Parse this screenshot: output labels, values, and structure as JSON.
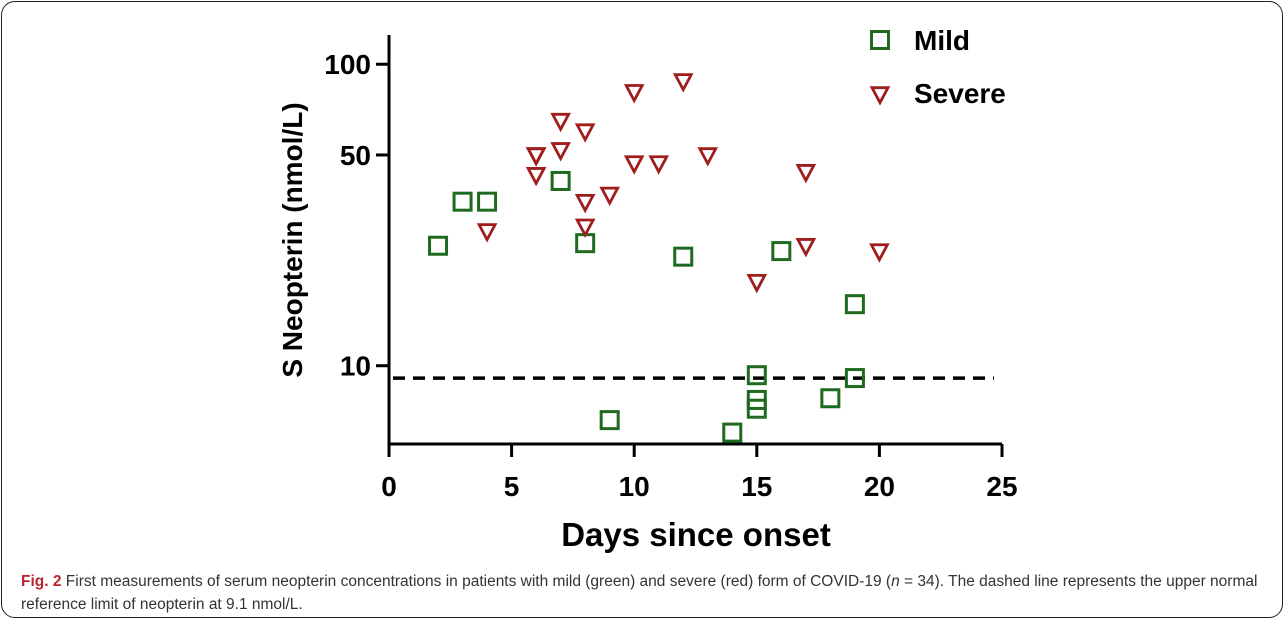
{
  "chart_data": {
    "type": "scatter",
    "xlabel": "Days since onset",
    "ylabel": "S Neopterin (nmol/L)",
    "xlim": [
      0,
      25
    ],
    "ylim": [
      5.5,
      125
    ],
    "yscale": "log",
    "xticks": [
      0,
      5,
      10,
      15,
      20,
      25
    ],
    "yticks": [
      10,
      50,
      100
    ],
    "legend_position": "top-right",
    "reference_line": {
      "y": 9.1,
      "style": "dashed"
    },
    "series": [
      {
        "name": "Mild",
        "marker": "square-open",
        "color": "#1e6a1e",
        "points": [
          {
            "x": 2,
            "y": 25
          },
          {
            "x": 3,
            "y": 35
          },
          {
            "x": 4,
            "y": 35
          },
          {
            "x": 7,
            "y": 41
          },
          {
            "x": 8,
            "y": 25.5
          },
          {
            "x": 9,
            "y": 6.6
          },
          {
            "x": 12,
            "y": 23
          },
          {
            "x": 14,
            "y": 6
          },
          {
            "x": 15,
            "y": 9.3
          },
          {
            "x": 15,
            "y": 7.7
          },
          {
            "x": 15,
            "y": 7.2
          },
          {
            "x": 16,
            "y": 24
          },
          {
            "x": 18,
            "y": 7.8
          },
          {
            "x": 19,
            "y": 9.1
          },
          {
            "x": 19,
            "y": 16
          }
        ]
      },
      {
        "name": "Severe",
        "marker": "triangle-down-open",
        "color": "#a01d1d",
        "points": [
          {
            "x": 4,
            "y": 28
          },
          {
            "x": 6,
            "y": 50
          },
          {
            "x": 6,
            "y": 50
          },
          {
            "x": 6,
            "y": 43
          },
          {
            "x": 7,
            "y": 52
          },
          {
            "x": 7,
            "y": 65
          },
          {
            "x": 8,
            "y": 60
          },
          {
            "x": 8,
            "y": 35
          },
          {
            "x": 8,
            "y": 29
          },
          {
            "x": 9,
            "y": 37
          },
          {
            "x": 10,
            "y": 47
          },
          {
            "x": 10,
            "y": 81
          },
          {
            "x": 11,
            "y": 47
          },
          {
            "x": 12,
            "y": 88
          },
          {
            "x": 13,
            "y": 50
          },
          {
            "x": 15,
            "y": 19
          },
          {
            "x": 17,
            "y": 44
          },
          {
            "x": 17,
            "y": 25
          },
          {
            "x": 20,
            "y": 24
          }
        ]
      }
    ]
  },
  "caption": {
    "label": "Fig. 2",
    "text_before_n": " First measurements of serum neopterin concentrations in patients with mild (green) and severe (red) form of COVID-19 (",
    "n_symbol": "n",
    "text_after_n": " = 34). The dashed line represents the upper normal reference limit of neopterin at 9.1 nmol/L."
  }
}
